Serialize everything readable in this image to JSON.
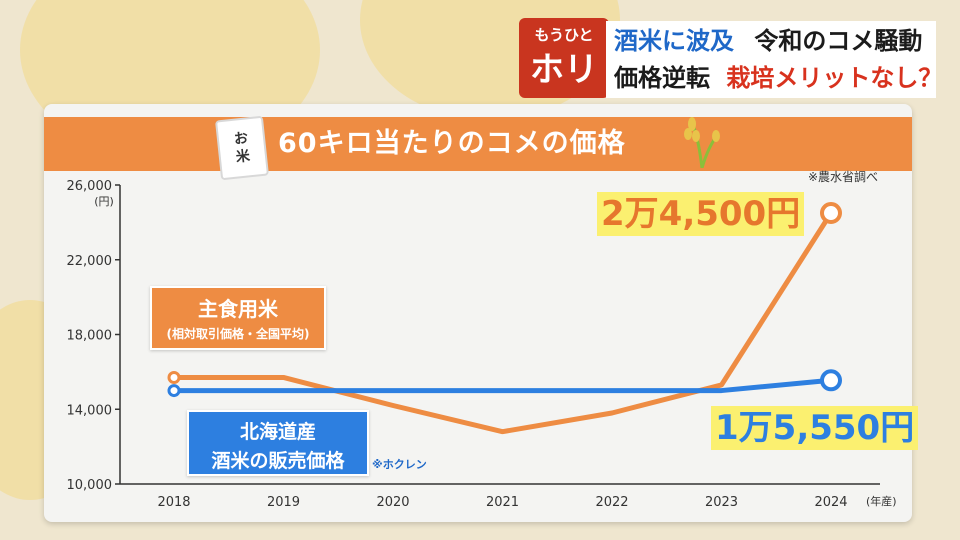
{
  "badge": {
    "top": "もうひと",
    "bottom": "ホリ"
  },
  "headline": {
    "line1_a": "酒米に波及",
    "line1_b": "令和のコメ騒動",
    "line2_a": "価格逆転",
    "line2_b": "栽培メリットなし？"
  },
  "card": {
    "bag_line1": "お",
    "bag_line2": "米",
    "title": "60キロ当たりのコメの価格",
    "source": "※農水省調べ"
  },
  "labels": {
    "orange_title": "主食用米",
    "orange_sub": "(相対取引価格・全国平均)",
    "blue_line1": "北海道産",
    "blue_line2": "酒米の販売価格",
    "blue_source": "※ホクレン"
  },
  "callouts": {
    "orange_value": "2万4,500円",
    "blue_value": "1万5,550円"
  },
  "colors": {
    "orange": "#ee8c43",
    "blue": "#2d7fe0",
    "highlight": "#fbf070",
    "badge": "#c9351f"
  },
  "chart_data": {
    "type": "line",
    "title": "60キロ当たりのコメの価格",
    "ylabel": "(円)",
    "xlabel": "(年産)",
    "categories": [
      "2018",
      "2019",
      "2020",
      "2021",
      "2022",
      "2023",
      "2024"
    ],
    "y_ticks": [
      "26,000",
      "22,000",
      "18,000",
      "14,000",
      "10,000"
    ],
    "y_tick_values": [
      26000,
      22000,
      18000,
      14000,
      10000
    ],
    "ylim": [
      10000,
      26000
    ],
    "grid": false,
    "series": [
      {
        "name": "主食用米",
        "color": "#ee8c43",
        "values": [
          15700,
          15700,
          14200,
          12800,
          13800,
          15300,
          24500
        ]
      },
      {
        "name": "酒米の販売価格",
        "color": "#2d7fe0",
        "values": [
          15000,
          15000,
          15000,
          15000,
          15000,
          15000,
          15550
        ]
      }
    ]
  }
}
